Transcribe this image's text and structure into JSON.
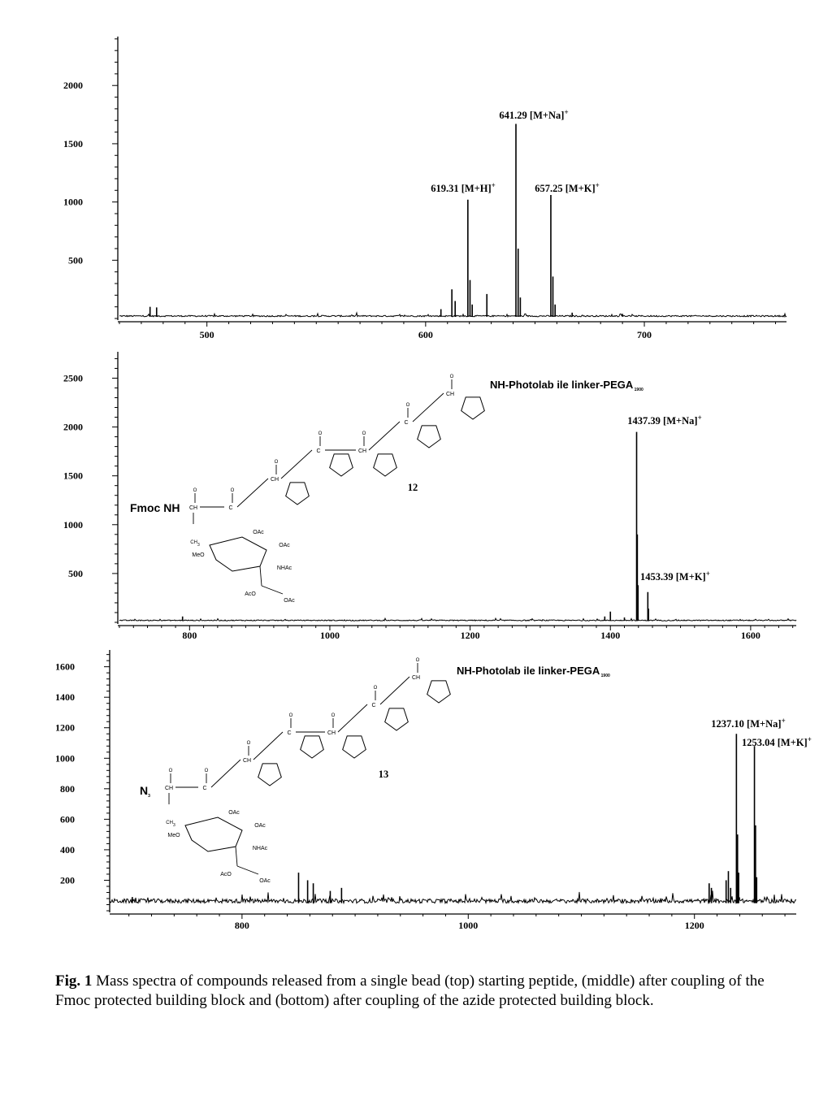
{
  "chart_data": [
    {
      "type": "line",
      "panel": "top",
      "x_ticks": [
        500,
        600,
        700
      ],
      "y_ticks": [
        500,
        1000,
        1500,
        2000
      ],
      "xlim": [
        460,
        765
      ],
      "ylim": [
        0,
        2420
      ],
      "baseline": 15,
      "noise": 12,
      "peaks": [
        {
          "x": 474,
          "y": 100
        },
        {
          "x": 477,
          "y": 95
        },
        {
          "x": 607,
          "y": 80
        },
        {
          "x": 612,
          "y": 250
        },
        {
          "x": 613.5,
          "y": 150
        },
        {
          "x": 619.31,
          "y": 1020
        },
        {
          "x": 620.3,
          "y": 330
        },
        {
          "x": 621.3,
          "y": 120
        },
        {
          "x": 628,
          "y": 210
        },
        {
          "x": 641.29,
          "y": 1670
        },
        {
          "x": 642.3,
          "y": 600
        },
        {
          "x": 643.3,
          "y": 180
        },
        {
          "x": 657.25,
          "y": 1060
        },
        {
          "x": 658.2,
          "y": 360
        },
        {
          "x": 659.2,
          "y": 120
        },
        {
          "x": 667,
          "y": 50
        },
        {
          "x": 690,
          "y": 40
        }
      ],
      "annotations": [
        {
          "text": "641.29 [M+Na]",
          "sup": "+",
          "x": 641.29
        },
        {
          "text": "619.31 [M+H]",
          "sup": "+",
          "x": 619.31
        },
        {
          "text": "657.25 [M+K]",
          "sup": "+",
          "x": 657.25
        }
      ]
    },
    {
      "type": "line",
      "panel": "middle",
      "x_ticks": [
        800,
        1000,
        1200,
        1400,
        1600
      ],
      "y_ticks": [
        500,
        1000,
        1500,
        2000,
        2500
      ],
      "xlim": [
        700,
        1665
      ],
      "ylim": [
        0,
        2770
      ],
      "baseline": 15,
      "noise": 10,
      "peaks": [
        {
          "x": 790,
          "y": 60
        },
        {
          "x": 1392,
          "y": 60
        },
        {
          "x": 1400,
          "y": 110
        },
        {
          "x": 1420,
          "y": 50
        },
        {
          "x": 1437.39,
          "y": 1950
        },
        {
          "x": 1438.4,
          "y": 900
        },
        {
          "x": 1439.4,
          "y": 380
        },
        {
          "x": 1453.39,
          "y": 310
        },
        {
          "x": 1454.4,
          "y": 140
        }
      ],
      "annotations": [
        {
          "text": "1437.39 [M+Na]",
          "sup": "+",
          "x": 1437.39
        },
        {
          "text": "1453.39 [M+K]",
          "sup": "+",
          "x": 1453.39
        }
      ],
      "compound_number": "12",
      "structure_labels": {
        "n_terminus": "Fmoc NH",
        "linker": "NH-Photolab ile linker-PEGA",
        "linker_sub": "1900",
        "ome": "MeO",
        "oac": "OAc",
        "aco": "AcO",
        "nhac": "NHAc",
        "ch3": "CH",
        "ch3_sub": "3",
        "ch": "CH",
        "c": "C",
        "n": "N",
        "h": "H",
        "o": "O"
      }
    },
    {
      "type": "line",
      "panel": "bottom",
      "x_ticks": [
        800,
        1000,
        1200
      ],
      "y_ticks": [
        200,
        400,
        600,
        800,
        1000,
        1200,
        1400,
        1600
      ],
      "xlim": [
        683,
        1290
      ],
      "ylim": [
        0,
        1710
      ],
      "baseline": 50,
      "noise": 28,
      "peaks": [
        {
          "x": 850,
          "y": 250
        },
        {
          "x": 858,
          "y": 200
        },
        {
          "x": 863,
          "y": 180
        },
        {
          "x": 878,
          "y": 130
        },
        {
          "x": 888,
          "y": 150
        },
        {
          "x": 703,
          "y": 90
        },
        {
          "x": 1213,
          "y": 180
        },
        {
          "x": 1215,
          "y": 150
        },
        {
          "x": 1228,
          "y": 200
        },
        {
          "x": 1230,
          "y": 260
        },
        {
          "x": 1232,
          "y": 150
        },
        {
          "x": 1237.1,
          "y": 1160
        },
        {
          "x": 1238.1,
          "y": 500
        },
        {
          "x": 1239.1,
          "y": 250
        },
        {
          "x": 1253.04,
          "y": 1080
        },
        {
          "x": 1254,
          "y": 560
        },
        {
          "x": 1255,
          "y": 220
        }
      ],
      "annotations": [
        {
          "text": "1237.10 [M+Na]",
          "sup": "+",
          "x": 1237.1
        },
        {
          "text": "1253.04 [M+K]",
          "sup": "+",
          "x": 1253.04
        }
      ],
      "compound_number": "13",
      "structure_labels": {
        "n_terminus": "N",
        "n_terminus_sub": "3",
        "linker": "NH-Photolab ile linker-PEGA",
        "linker_sub": "1900",
        "ome": "MeO",
        "oac": "OAc",
        "aco": "AcO",
        "nhac": "NHAc",
        "ch3": "CH",
        "ch3_sub": "3",
        "ch": "CH",
        "c": "C",
        "n": "N",
        "h": "H",
        "o": "O"
      }
    }
  ],
  "caption": {
    "label": "Fig. 1",
    "text": " Mass spectra of compounds released from a single bead (top) starting peptide, (middle) after coupling of the Fmoc protected building block and (bottom) after coupling of the azide protected building block."
  }
}
